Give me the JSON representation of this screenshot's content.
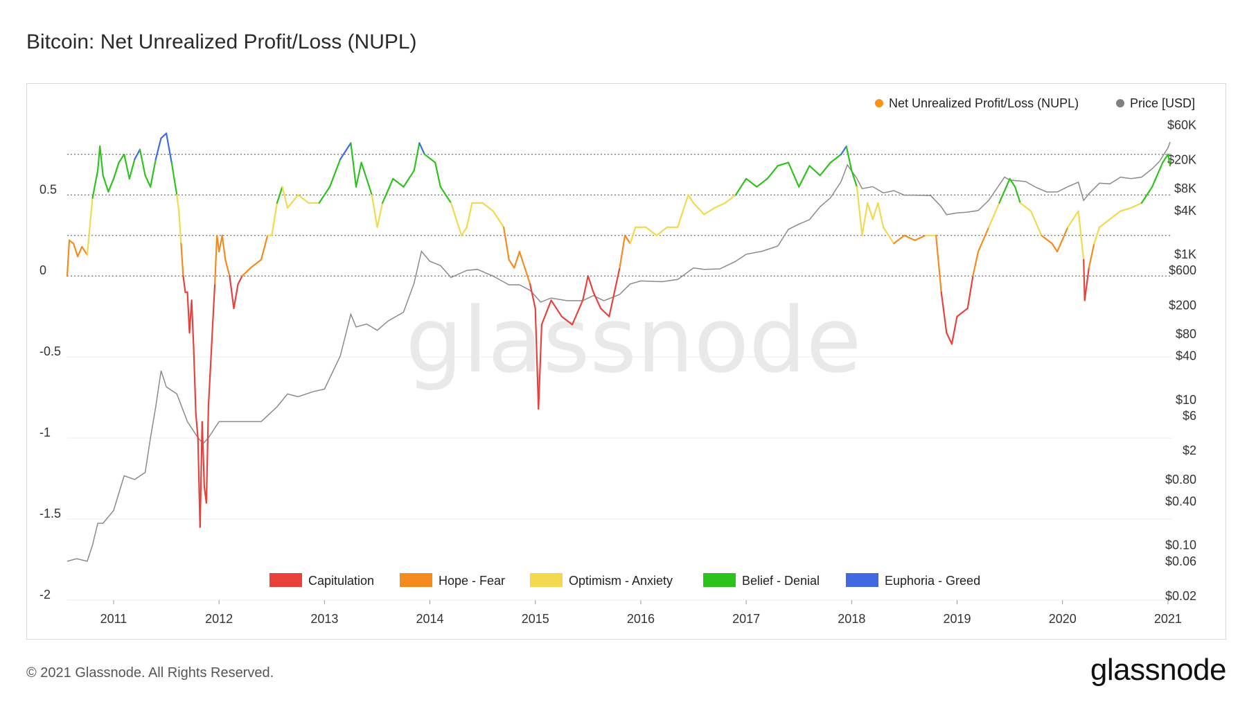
{
  "page": {
    "title": "Bitcoin: Net Unrealized Profit/Loss (NUPL)",
    "copyright": "© 2021 Glassnode. All Rights Reserved.",
    "logo": "glassnode",
    "watermark": "glassnode"
  },
  "chart_data": {
    "type": "line",
    "title": "Bitcoin: Net Unrealized Profit/Loss (NUPL)",
    "xlabel": "",
    "ylabel": "",
    "xlim": [
      2010.56,
      2021.04
    ],
    "x_ticks": [
      "2011",
      "2012",
      "2013",
      "2014",
      "2015",
      "2016",
      "2017",
      "2018",
      "2019",
      "2020",
      "2021"
    ],
    "y_left": {
      "range": [
        -2,
        0.95
      ],
      "ticks": [
        0.5,
        0,
        -0.5,
        -1,
        -1.5,
        -2
      ],
      "tick_labels": [
        "0.5",
        "0",
        "-0.5",
        "-1",
        "-1.5",
        "-2"
      ],
      "reference_lines": [
        0.75,
        0.5,
        0.25,
        0
      ]
    },
    "y_right": {
      "scale": "log",
      "ticks": [
        60000,
        20000,
        8000,
        4000,
        1000,
        600,
        200,
        80,
        40,
        10,
        6,
        2,
        0.8,
        0.4,
        0.1,
        0.06,
        0.02
      ],
      "tick_labels": [
        "$60K",
        "$20K",
        "$8K",
        "$4K",
        "$1K",
        "$600",
        "$200",
        "$80",
        "$40",
        "$10",
        "$6",
        "$2",
        "$0.80",
        "$0.40",
        "$0.10",
        "$0.06",
        "$0.02"
      ]
    },
    "grid": false,
    "legend_top": [
      {
        "label": "Net Unrealized Profit/Loss (NUPL)",
        "color": "#f7931a"
      },
      {
        "label": "Price [USD]",
        "color": "#808080"
      }
    ],
    "legend_bottom": [
      {
        "label": "Capitulation",
        "color": "#e8413c"
      },
      {
        "label": "Hope - Fear",
        "color": "#f58a1f"
      },
      {
        "label": "Optimism - Anxiety",
        "color": "#f2d94e"
      },
      {
        "label": "Belief - Denial",
        "color": "#2cc31c"
      },
      {
        "label": "Euphoria - Greed",
        "color": "#4169e1"
      }
    ],
    "series": [
      {
        "name": "Net Unrealized Profit/Loss (NUPL)",
        "axis": "left",
        "points": [
          [
            2010.56,
            0.0
          ],
          [
            2010.58,
            0.22
          ],
          [
            2010.62,
            0.2
          ],
          [
            2010.66,
            0.12
          ],
          [
            2010.7,
            0.18
          ],
          [
            2010.75,
            0.13
          ],
          [
            2010.8,
            0.48
          ],
          [
            2010.85,
            0.65
          ],
          [
            2010.87,
            0.8
          ],
          [
            2010.9,
            0.62
          ],
          [
            2010.95,
            0.52
          ],
          [
            2011.0,
            0.6
          ],
          [
            2011.05,
            0.7
          ],
          [
            2011.1,
            0.75
          ],
          [
            2011.15,
            0.6
          ],
          [
            2011.2,
            0.72
          ],
          [
            2011.25,
            0.78
          ],
          [
            2011.3,
            0.62
          ],
          [
            2011.35,
            0.55
          ],
          [
            2011.4,
            0.72
          ],
          [
            2011.45,
            0.85
          ],
          [
            2011.5,
            0.88
          ],
          [
            2011.55,
            0.7
          ],
          [
            2011.6,
            0.5
          ],
          [
            2011.62,
            0.4
          ],
          [
            2011.64,
            0.2
          ],
          [
            2011.66,
            0.0
          ],
          [
            2011.68,
            -0.1
          ],
          [
            2011.7,
            -0.1
          ],
          [
            2011.72,
            -0.35
          ],
          [
            2011.74,
            -0.15
          ],
          [
            2011.76,
            -0.45
          ],
          [
            2011.78,
            -0.85
          ],
          [
            2011.8,
            -1.0
          ],
          [
            2011.82,
            -1.55
          ],
          [
            2011.84,
            -0.9
          ],
          [
            2011.86,
            -1.3
          ],
          [
            2011.88,
            -1.4
          ],
          [
            2011.9,
            -0.8
          ],
          [
            2011.92,
            -0.55
          ],
          [
            2011.94,
            -0.3
          ],
          [
            2011.96,
            -0.05
          ],
          [
            2011.98,
            0.25
          ],
          [
            2012.0,
            0.15
          ],
          [
            2012.03,
            0.25
          ],
          [
            2012.06,
            0.1
          ],
          [
            2012.1,
            0.0
          ],
          [
            2012.14,
            -0.2
          ],
          [
            2012.18,
            -0.05
          ],
          [
            2012.22,
            0.0
          ],
          [
            2012.3,
            0.05
          ],
          [
            2012.4,
            0.1
          ],
          [
            2012.46,
            0.25
          ],
          [
            2012.5,
            0.25
          ],
          [
            2012.55,
            0.45
          ],
          [
            2012.6,
            0.55
          ],
          [
            2012.65,
            0.42
          ],
          [
            2012.75,
            0.5
          ],
          [
            2012.85,
            0.45
          ],
          [
            2012.95,
            0.45
          ],
          [
            2013.05,
            0.55
          ],
          [
            2013.15,
            0.72
          ],
          [
            2013.25,
            0.82
          ],
          [
            2013.3,
            0.55
          ],
          [
            2013.35,
            0.7
          ],
          [
            2013.45,
            0.5
          ],
          [
            2013.5,
            0.3
          ],
          [
            2013.55,
            0.45
          ],
          [
            2013.65,
            0.6
          ],
          [
            2013.75,
            0.55
          ],
          [
            2013.85,
            0.65
          ],
          [
            2013.9,
            0.82
          ],
          [
            2013.95,
            0.75
          ],
          [
            2014.05,
            0.7
          ],
          [
            2014.1,
            0.55
          ],
          [
            2014.2,
            0.45
          ],
          [
            2014.3,
            0.25
          ],
          [
            2014.35,
            0.3
          ],
          [
            2014.4,
            0.45
          ],
          [
            2014.5,
            0.45
          ],
          [
            2014.6,
            0.4
          ],
          [
            2014.7,
            0.3
          ],
          [
            2014.75,
            0.1
          ],
          [
            2014.8,
            0.05
          ],
          [
            2014.85,
            0.15
          ],
          [
            2014.9,
            0.05
          ],
          [
            2014.95,
            -0.05
          ],
          [
            2015.0,
            -0.2
          ],
          [
            2015.03,
            -0.82
          ],
          [
            2015.06,
            -0.3
          ],
          [
            2015.15,
            -0.15
          ],
          [
            2015.25,
            -0.25
          ],
          [
            2015.35,
            -0.3
          ],
          [
            2015.45,
            -0.15
          ],
          [
            2015.5,
            0.0
          ],
          [
            2015.55,
            -0.1
          ],
          [
            2015.62,
            -0.2
          ],
          [
            2015.7,
            -0.25
          ],
          [
            2015.75,
            -0.1
          ],
          [
            2015.8,
            0.05
          ],
          [
            2015.85,
            0.25
          ],
          [
            2015.9,
            0.2
          ],
          [
            2015.95,
            0.3
          ],
          [
            2016.05,
            0.3
          ],
          [
            2016.15,
            0.25
          ],
          [
            2016.25,
            0.3
          ],
          [
            2016.35,
            0.3
          ],
          [
            2016.45,
            0.5
          ],
          [
            2016.5,
            0.45
          ],
          [
            2016.6,
            0.38
          ],
          [
            2016.7,
            0.42
          ],
          [
            2016.8,
            0.45
          ],
          [
            2016.9,
            0.5
          ],
          [
            2017.0,
            0.6
          ],
          [
            2017.1,
            0.55
          ],
          [
            2017.2,
            0.6
          ],
          [
            2017.3,
            0.68
          ],
          [
            2017.4,
            0.7
          ],
          [
            2017.5,
            0.55
          ],
          [
            2017.6,
            0.68
          ],
          [
            2017.7,
            0.62
          ],
          [
            2017.8,
            0.7
          ],
          [
            2017.9,
            0.75
          ],
          [
            2017.95,
            0.8
          ],
          [
            2018.0,
            0.65
          ],
          [
            2018.05,
            0.55
          ],
          [
            2018.1,
            0.25
          ],
          [
            2018.15,
            0.45
          ],
          [
            2018.2,
            0.35
          ],
          [
            2018.25,
            0.45
          ],
          [
            2018.3,
            0.3
          ],
          [
            2018.4,
            0.2
          ],
          [
            2018.5,
            0.25
          ],
          [
            2018.6,
            0.22
          ],
          [
            2018.7,
            0.25
          ],
          [
            2018.8,
            0.25
          ],
          [
            2018.85,
            -0.1
          ],
          [
            2018.9,
            -0.35
          ],
          [
            2018.95,
            -0.42
          ],
          [
            2019.0,
            -0.25
          ],
          [
            2019.1,
            -0.2
          ],
          [
            2019.15,
            0.0
          ],
          [
            2019.2,
            0.15
          ],
          [
            2019.3,
            0.3
          ],
          [
            2019.4,
            0.45
          ],
          [
            2019.5,
            0.6
          ],
          [
            2019.55,
            0.55
          ],
          [
            2019.6,
            0.45
          ],
          [
            2019.7,
            0.4
          ],
          [
            2019.8,
            0.25
          ],
          [
            2019.9,
            0.2
          ],
          [
            2019.95,
            0.15
          ],
          [
            2020.05,
            0.3
          ],
          [
            2020.15,
            0.4
          ],
          [
            2020.2,
            0.1
          ],
          [
            2020.21,
            -0.15
          ],
          [
            2020.25,
            0.05
          ],
          [
            2020.3,
            0.2
          ],
          [
            2020.35,
            0.3
          ],
          [
            2020.45,
            0.35
          ],
          [
            2020.55,
            0.4
          ],
          [
            2020.65,
            0.42
          ],
          [
            2020.75,
            0.45
          ],
          [
            2020.85,
            0.55
          ],
          [
            2020.95,
            0.7
          ],
          [
            2021.0,
            0.75
          ],
          [
            2021.02,
            0.68
          ]
        ]
      },
      {
        "name": "Price [USD]",
        "axis": "right",
        "points": [
          [
            2010.56,
            0.06
          ],
          [
            2010.65,
            0.065
          ],
          [
            2010.75,
            0.06
          ],
          [
            2010.8,
            0.1
          ],
          [
            2010.85,
            0.2
          ],
          [
            2010.9,
            0.2
          ],
          [
            2011.0,
            0.3
          ],
          [
            2011.1,
            0.9
          ],
          [
            2011.2,
            0.8
          ],
          [
            2011.3,
            1.0
          ],
          [
            2011.35,
            3
          ],
          [
            2011.4,
            8
          ],
          [
            2011.45,
            25
          ],
          [
            2011.5,
            15
          ],
          [
            2011.6,
            12
          ],
          [
            2011.7,
            5
          ],
          [
            2011.8,
            3
          ],
          [
            2011.85,
            2.5
          ],
          [
            2011.9,
            3
          ],
          [
            2012.0,
            5
          ],
          [
            2012.1,
            5
          ],
          [
            2012.2,
            5
          ],
          [
            2012.4,
            5
          ],
          [
            2012.55,
            8
          ],
          [
            2012.65,
            12
          ],
          [
            2012.75,
            11
          ],
          [
            2012.9,
            13
          ],
          [
            2013.0,
            14
          ],
          [
            2013.15,
            40
          ],
          [
            2013.25,
            150
          ],
          [
            2013.3,
            100
          ],
          [
            2013.4,
            110
          ],
          [
            2013.5,
            90
          ],
          [
            2013.6,
            120
          ],
          [
            2013.75,
            160
          ],
          [
            2013.85,
            400
          ],
          [
            2013.92,
            1100
          ],
          [
            2014.0,
            800
          ],
          [
            2014.1,
            700
          ],
          [
            2014.2,
            480
          ],
          [
            2014.35,
            600
          ],
          [
            2014.45,
            620
          ],
          [
            2014.6,
            500
          ],
          [
            2014.75,
            380
          ],
          [
            2014.85,
            380
          ],
          [
            2014.95,
            320
          ],
          [
            2015.05,
            220
          ],
          [
            2015.15,
            250
          ],
          [
            2015.3,
            230
          ],
          [
            2015.45,
            230
          ],
          [
            2015.55,
            270
          ],
          [
            2015.65,
            230
          ],
          [
            2015.8,
            280
          ],
          [
            2015.9,
            390
          ],
          [
            2016.0,
            430
          ],
          [
            2016.2,
            420
          ],
          [
            2016.35,
            450
          ],
          [
            2016.5,
            650
          ],
          [
            2016.6,
            620
          ],
          [
            2016.75,
            630
          ],
          [
            2016.9,
            800
          ],
          [
            2017.0,
            1000
          ],
          [
            2017.15,
            1100
          ],
          [
            2017.3,
            1300
          ],
          [
            2017.4,
            2200
          ],
          [
            2017.5,
            2600
          ],
          [
            2017.6,
            3000
          ],
          [
            2017.7,
            4500
          ],
          [
            2017.8,
            6000
          ],
          [
            2017.9,
            10000
          ],
          [
            2017.96,
            17000
          ],
          [
            2018.05,
            11000
          ],
          [
            2018.1,
            8000
          ],
          [
            2018.2,
            8500
          ],
          [
            2018.3,
            7000
          ],
          [
            2018.4,
            7500
          ],
          [
            2018.5,
            6500
          ],
          [
            2018.6,
            6500
          ],
          [
            2018.75,
            6400
          ],
          [
            2018.85,
            4500
          ],
          [
            2018.9,
            3500
          ],
          [
            2019.0,
            3700
          ],
          [
            2019.1,
            3800
          ],
          [
            2019.2,
            4000
          ],
          [
            2019.3,
            5500
          ],
          [
            2019.45,
            11500
          ],
          [
            2019.5,
            10500
          ],
          [
            2019.65,
            10000
          ],
          [
            2019.75,
            8300
          ],
          [
            2019.85,
            7200
          ],
          [
            2019.95,
            7200
          ],
          [
            2020.05,
            8500
          ],
          [
            2020.15,
            9800
          ],
          [
            2020.2,
            5500
          ],
          [
            2020.25,
            6800
          ],
          [
            2020.35,
            9500
          ],
          [
            2020.45,
            9300
          ],
          [
            2020.55,
            11500
          ],
          [
            2020.65,
            11000
          ],
          [
            2020.75,
            11500
          ],
          [
            2020.85,
            15000
          ],
          [
            2020.92,
            19000
          ],
          [
            2021.0,
            29000
          ],
          [
            2021.02,
            35000
          ]
        ]
      }
    ]
  }
}
